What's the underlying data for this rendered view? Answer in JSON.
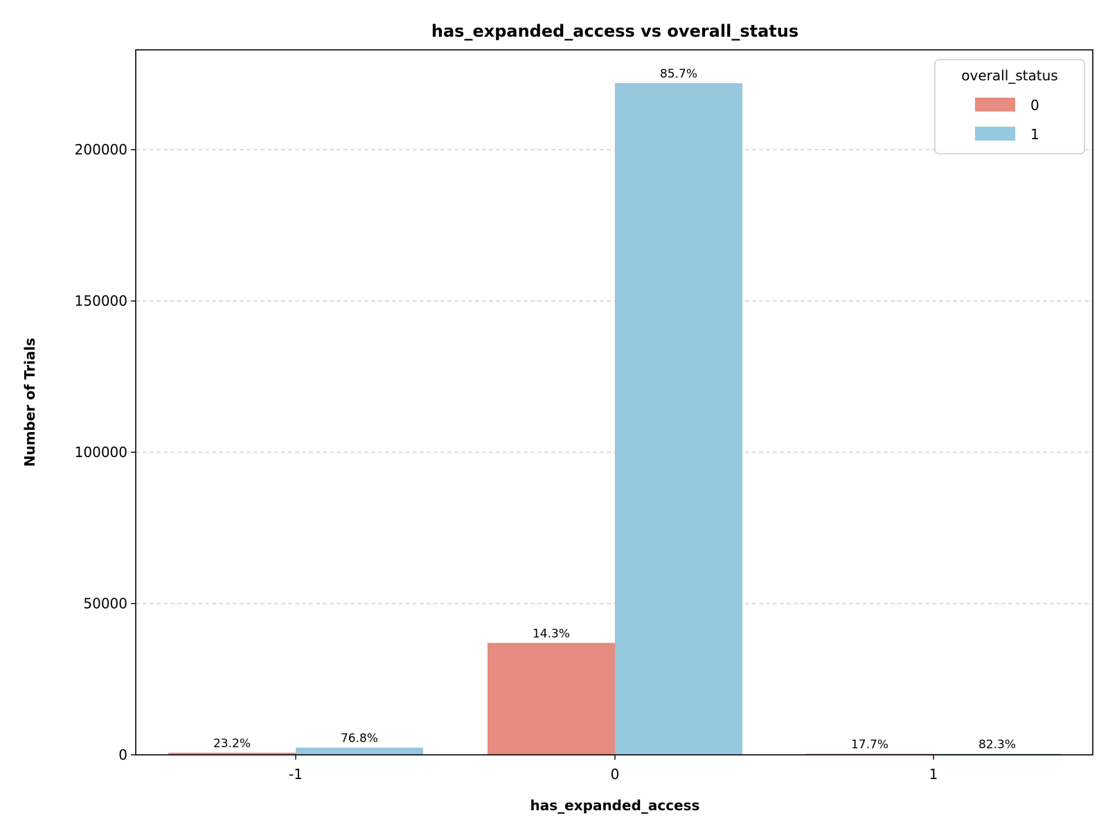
{
  "chart_data": {
    "type": "bar",
    "title": "has_expanded_access vs overall_status",
    "xlabel": "has_expanded_access",
    "ylabel": "Number of Trials",
    "categories": [
      "-1",
      "0",
      "1"
    ],
    "series": [
      {
        "name": "0",
        "color": "#e78c80",
        "values": [
          700,
          37000,
          35
        ],
        "labels": [
          "23.2%",
          "14.3%",
          "17.7%"
        ]
      },
      {
        "name": "1",
        "color": "#96c8de",
        "values": [
          2400,
          222000,
          160
        ],
        "labels": [
          "76.8%",
          "85.7%",
          "82.3%"
        ]
      }
    ],
    "ylim": [
      0,
      233000
    ],
    "yticks": [
      0,
      50000,
      100000,
      150000,
      200000
    ],
    "ytick_labels": [
      "0",
      "50000",
      "100000",
      "150000",
      "200000"
    ],
    "grid": "y-dashed",
    "legend": {
      "title": "overall_status",
      "placement": "top-right"
    }
  }
}
